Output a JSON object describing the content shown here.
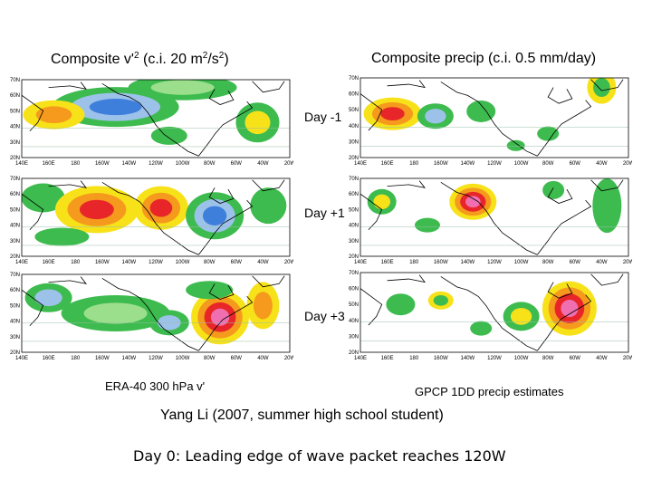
{
  "titles": {
    "left_pre": "Composite v'",
    "left_sup1": "2",
    "left_mid": " (c.i. 20 m",
    "left_sup2": "2",
    "left_mid2": "/s",
    "left_sup3": "2",
    "left_post": ")",
    "right": "Composite precip (c.i. 0.5 mm/day)"
  },
  "day_labels": [
    "Day -1",
    "Day +1",
    "Day +3"
  ],
  "captions": {
    "left": "ERA-40 300 hPa v'",
    "right": "GPCP 1DD precip estimates"
  },
  "author": "Yang Li (2007, summer high school student)",
  "note": "Day 0: Leading edge of wave packet reaches 120W",
  "left_axis": {
    "lat_ticks": [
      "70N",
      "60N",
      "50N",
      "40N",
      "30N",
      "20N"
    ],
    "lon_ticks": [
      "140E",
      "160E",
      "180",
      "160W",
      "140W",
      "120W",
      "100W",
      "80W",
      "60W",
      "40W",
      "20W"
    ]
  },
  "right_axis": {
    "lat_ticks": [
      "70N",
      "60N",
      "50N",
      "40N",
      "30N",
      "20N"
    ],
    "lon_ticks": [
      "140E",
      "160E",
      "180",
      "160W",
      "140W",
      "120W",
      "100W",
      "80W",
      "60W",
      "40W",
      "20W"
    ]
  },
  "colors": {
    "green": "#3dbb4e",
    "light_green": "#9bde8c",
    "yellow": "#f7e21a",
    "orange": "#f59a1c",
    "red": "#e8262a",
    "pink": "#f06fb1",
    "light_blue": "#9dc2ea",
    "blue": "#3f7fdc",
    "coast": "#000000"
  }
}
